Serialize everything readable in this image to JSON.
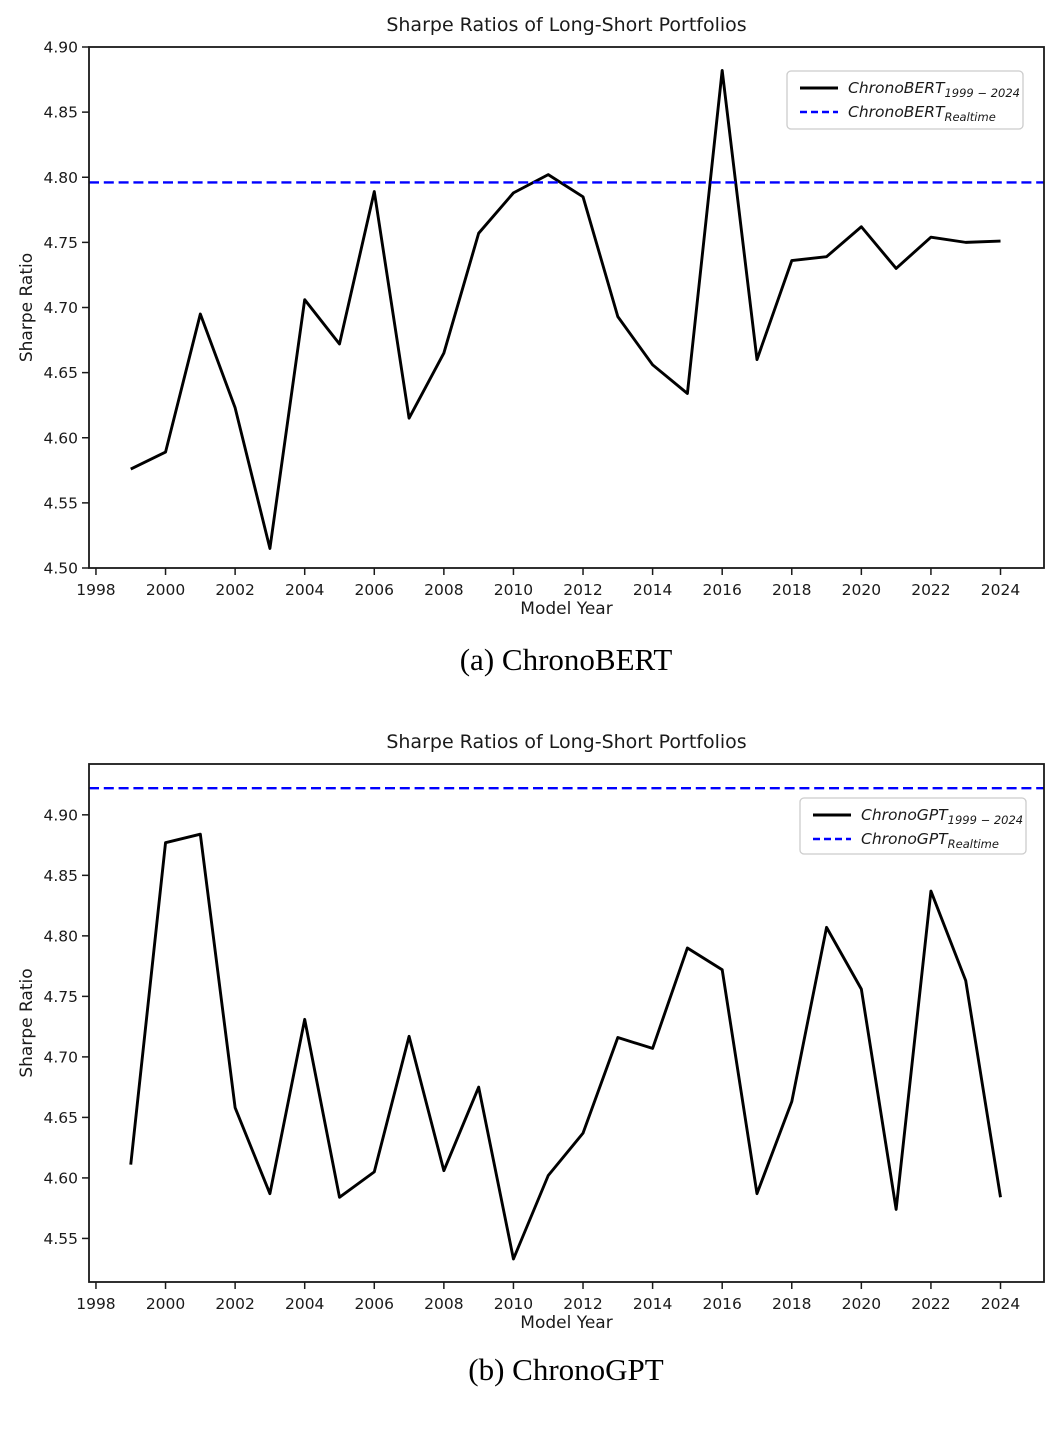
{
  "page": {
    "background": "#ffffff"
  },
  "captions": {
    "a": "(a) ChronoBERT",
    "b": "(b) ChronoGPT"
  },
  "colors": {
    "series_line": "#000000",
    "realtime_line": "#0000ff",
    "text": "#1a1a1a",
    "spine": "#1a1a1a",
    "legend_border": "#cccccc"
  },
  "chart_data": [
    {
      "id": "chart-a",
      "type": "line",
      "title": "Sharpe Ratios of Long-Short Portfolios",
      "xlabel": "Model Year",
      "ylabel": "Sharpe Ratio",
      "xlim": [
        1997.8,
        2025.25
      ],
      "ylim": [
        4.5,
        4.9
      ],
      "grid": false,
      "legend_position": "upper right",
      "xticks": [
        1998,
        2000,
        2002,
        2004,
        2006,
        2008,
        2010,
        2012,
        2014,
        2016,
        2018,
        2020,
        2022,
        2024
      ],
      "xtick_labels": [
        "1998",
        "2000",
        "2002",
        "2004",
        "2006",
        "2008",
        "2010",
        "2012",
        "2014",
        "2016",
        "2018",
        "2020",
        "2022",
        "2024"
      ],
      "yticks": [
        4.5,
        4.55,
        4.6,
        4.65,
        4.7,
        4.75,
        4.8,
        4.85,
        4.9
      ],
      "ytick_labels": [
        "4.50",
        "4.55",
        "4.60",
        "4.65",
        "4.70",
        "4.75",
        "4.80",
        "4.85",
        "4.90"
      ],
      "x": [
        1999,
        2000,
        2001,
        2002,
        2003,
        2004,
        2005,
        2006,
        2007,
        2008,
        2009,
        2010,
        2011,
        2012,
        2013,
        2014,
        2015,
        2016,
        2017,
        2018,
        2019,
        2020,
        2021,
        2022,
        2023,
        2024
      ],
      "series": [
        {
          "name": "ChronoBERT 1999-2024",
          "legend_main": "ChronoBERT",
          "legend_sub": "1999 − 2024",
          "kind": "line",
          "color": "#000000",
          "dash": "solid",
          "values": [
            4.576,
            4.589,
            4.695,
            4.623,
            4.515,
            4.706,
            4.672,
            4.789,
            4.615,
            4.665,
            4.757,
            4.788,
            4.802,
            4.785,
            4.693,
            4.656,
            4.634,
            4.882,
            4.66,
            4.736,
            4.739,
            4.762,
            4.73,
            4.754,
            4.75,
            4.751
          ]
        },
        {
          "name": "ChronoBERT Realtime",
          "legend_main": "ChronoBERT",
          "legend_sub": "Realtime",
          "kind": "hline",
          "color": "#0000ff",
          "dash": "dashed",
          "value": 4.796
        }
      ]
    },
    {
      "id": "chart-b",
      "type": "line",
      "title": "Sharpe Ratios of Long-Short Portfolios",
      "xlabel": "Model Year",
      "ylabel": "Sharpe Ratio",
      "xlim": [
        1997.8,
        2025.25
      ],
      "ylim": [
        4.514,
        4.942
      ],
      "grid": false,
      "legend_position": "upper right",
      "xticks": [
        1998,
        2000,
        2002,
        2004,
        2006,
        2008,
        2010,
        2012,
        2014,
        2016,
        2018,
        2020,
        2022,
        2024
      ],
      "xtick_labels": [
        "1998",
        "2000",
        "2002",
        "2004",
        "2006",
        "2008",
        "2010",
        "2012",
        "2014",
        "2016",
        "2018",
        "2020",
        "2022",
        "2024"
      ],
      "yticks": [
        4.55,
        4.6,
        4.65,
        4.7,
        4.75,
        4.8,
        4.85,
        4.9
      ],
      "ytick_labels": [
        "4.55",
        "4.60",
        "4.65",
        "4.70",
        "4.75",
        "4.80",
        "4.85",
        "4.90"
      ],
      "x": [
        1999,
        2000,
        2001,
        2002,
        2003,
        2004,
        2005,
        2006,
        2007,
        2008,
        2009,
        2010,
        2011,
        2012,
        2013,
        2014,
        2015,
        2016,
        2017,
        2018,
        2019,
        2020,
        2021,
        2022,
        2023,
        2024
      ],
      "series": [
        {
          "name": "ChronoGPT 1999-2024",
          "legend_main": "ChronoGPT",
          "legend_sub": "1999 − 2024",
          "kind": "line",
          "color": "#000000",
          "dash": "solid",
          "values": [
            4.611,
            4.877,
            4.884,
            4.658,
            4.587,
            4.731,
            4.584,
            4.605,
            4.717,
            4.606,
            4.675,
            4.533,
            4.602,
            4.637,
            4.716,
            4.707,
            4.79,
            4.772,
            4.587,
            4.663,
            4.807,
            4.756,
            4.574,
            4.837,
            4.763,
            4.584
          ]
        },
        {
          "name": "ChronoGPT Realtime",
          "legend_main": "ChronoGPT",
          "legend_sub": "Realtime",
          "kind": "hline",
          "color": "#0000ff",
          "dash": "dashed",
          "value": 4.922
        }
      ]
    }
  ]
}
